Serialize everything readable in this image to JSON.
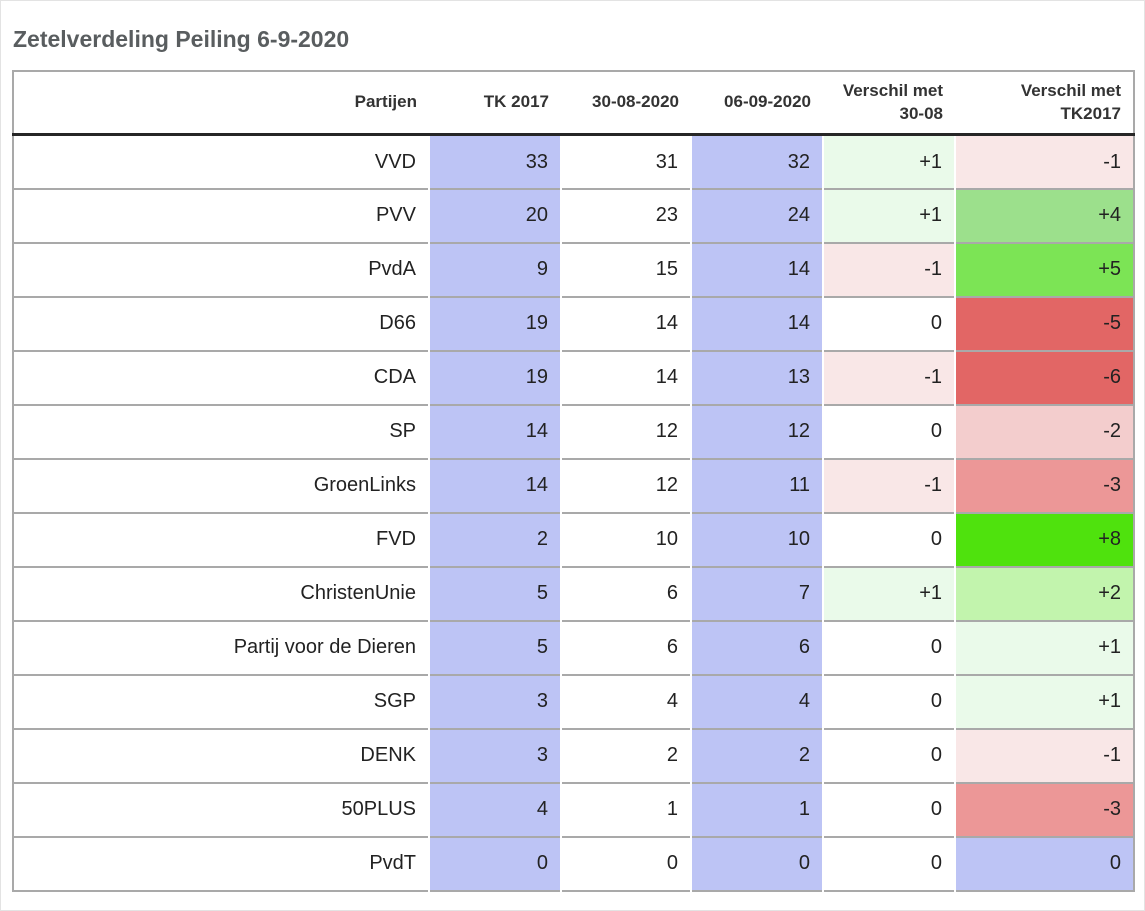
{
  "title": "Zetelverdeling Peiling 6-9-2020",
  "colors": {
    "seat_column_bg": "#bdc4f5",
    "header_rule": "#262626",
    "grid_line": "#a9a9a9",
    "diff_green_faint": "#eafaea",
    "diff_green_light": "#c2f4ad",
    "diff_green_mid": "#9ce08c",
    "diff_green_strong": "#7ce455",
    "diff_green_max": "#4fe20d",
    "diff_red_faint": "#f9e7e7",
    "diff_red_light": "#f3cdcd",
    "diff_red_mid": "#ec9797",
    "diff_red_strong": "#e26665"
  },
  "table": {
    "headers": [
      {
        "line1": "Partijen"
      },
      {
        "line1": "TK 2017"
      },
      {
        "line1": "30-08-2020"
      },
      {
        "line1": "06-09-2020"
      },
      {
        "line1": "Verschil met",
        "line2": "30-08"
      },
      {
        "line1": "Verschil met",
        "line2": "TK2017"
      }
    ],
    "rows": [
      {
        "party": "VVD",
        "tk2017": "33",
        "p3008": "31",
        "p0609": "32",
        "v3008": "+1",
        "v3008_bg": "#eafaea",
        "vtk": "-1",
        "vtk_bg": "#f9e7e7"
      },
      {
        "party": "PVV",
        "tk2017": "20",
        "p3008": "23",
        "p0609": "24",
        "v3008": "+1",
        "v3008_bg": "#eafaea",
        "vtk": "+4",
        "vtk_bg": "#9ce08c"
      },
      {
        "party": "PvdA",
        "tk2017": "9",
        "p3008": "15",
        "p0609": "14",
        "v3008": "-1",
        "v3008_bg": "#f9e7e7",
        "vtk": "+5",
        "vtk_bg": "#7ce455"
      },
      {
        "party": "D66",
        "tk2017": "19",
        "p3008": "14",
        "p0609": "14",
        "v3008": "0",
        "v3008_bg": "#ffffff",
        "vtk": "-5",
        "vtk_bg": "#e26665"
      },
      {
        "party": "CDA",
        "tk2017": "19",
        "p3008": "14",
        "p0609": "13",
        "v3008": "-1",
        "v3008_bg": "#f9e7e7",
        "vtk": "-6",
        "vtk_bg": "#e26665"
      },
      {
        "party": "SP",
        "tk2017": "14",
        "p3008": "12",
        "p0609": "12",
        "v3008": "0",
        "v3008_bg": "#ffffff",
        "vtk": "-2",
        "vtk_bg": "#f3cdcd"
      },
      {
        "party": "GroenLinks",
        "tk2017": "14",
        "p3008": "12",
        "p0609": "11",
        "v3008": "-1",
        "v3008_bg": "#f9e7e7",
        "vtk": "-3",
        "vtk_bg": "#ec9797"
      },
      {
        "party": "FVD",
        "tk2017": "2",
        "p3008": "10",
        "p0609": "10",
        "v3008": "0",
        "v3008_bg": "#ffffff",
        "vtk": "+8",
        "vtk_bg": "#4fe20d"
      },
      {
        "party": "ChristenUnie",
        "tk2017": "5",
        "p3008": "6",
        "p0609": "7",
        "v3008": "+1",
        "v3008_bg": "#eafaea",
        "vtk": "+2",
        "vtk_bg": "#c2f4ad"
      },
      {
        "party": "Partij voor de Dieren",
        "tk2017": "5",
        "p3008": "6",
        "p0609": "6",
        "v3008": "0",
        "v3008_bg": "#ffffff",
        "vtk": "+1",
        "vtk_bg": "#eafaea"
      },
      {
        "party": "SGP",
        "tk2017": "3",
        "p3008": "4",
        "p0609": "4",
        "v3008": "0",
        "v3008_bg": "#ffffff",
        "vtk": "+1",
        "vtk_bg": "#eafaea"
      },
      {
        "party": "DENK",
        "tk2017": "3",
        "p3008": "2",
        "p0609": "2",
        "v3008": "0",
        "v3008_bg": "#ffffff",
        "vtk": "-1",
        "vtk_bg": "#f9e7e7"
      },
      {
        "party": "50PLUS",
        "tk2017": "4",
        "p3008": "1",
        "p0609": "1",
        "v3008": "0",
        "v3008_bg": "#ffffff",
        "vtk": "-3",
        "vtk_bg": "#ec9797"
      },
      {
        "party": "PvdT",
        "tk2017": "0",
        "p3008": "0",
        "p0609": "0",
        "v3008": "0",
        "v3008_bg": "#ffffff",
        "vtk": "0",
        "vtk_bg": "#bdc4f5"
      }
    ]
  },
  "chart_data": {
    "type": "table",
    "title": "Zetelverdeling Peiling 6-9-2020",
    "columns": [
      "Partijen",
      "TK 2017",
      "30-08-2020",
      "06-09-2020",
      "Verschil met 30-08",
      "Verschil met TK2017"
    ],
    "rows": [
      [
        "VVD",
        33,
        31,
        32,
        "+1",
        "-1"
      ],
      [
        "PVV",
        20,
        23,
        24,
        "+1",
        "+4"
      ],
      [
        "PvdA",
        9,
        15,
        14,
        "-1",
        "+5"
      ],
      [
        "D66",
        19,
        14,
        14,
        "0",
        "-5"
      ],
      [
        "CDA",
        19,
        14,
        13,
        "-1",
        "-6"
      ],
      [
        "SP",
        14,
        12,
        12,
        "0",
        "-2"
      ],
      [
        "GroenLinks",
        14,
        12,
        11,
        "-1",
        "-3"
      ],
      [
        "FVD",
        2,
        10,
        10,
        "0",
        "+8"
      ],
      [
        "ChristenUnie",
        5,
        6,
        7,
        "+1",
        "+2"
      ],
      [
        "Partij voor de Dieren",
        5,
        6,
        6,
        "0",
        "+1"
      ],
      [
        "SGP",
        3,
        4,
        4,
        "0",
        "+1"
      ],
      [
        "DENK",
        3,
        2,
        2,
        "0",
        "-1"
      ],
      [
        "50PLUS",
        4,
        1,
        1,
        "0",
        "-3"
      ],
      [
        "PvdT",
        0,
        0,
        0,
        "0",
        "0"
      ]
    ],
    "notes": "Seat-count columns TK 2017 and 06-09-2020 shaded periwinkle blue; difference columns shaded green (gain) to red (loss) by magnitude; PvdT row difference vs TK2017 shaded blue."
  }
}
